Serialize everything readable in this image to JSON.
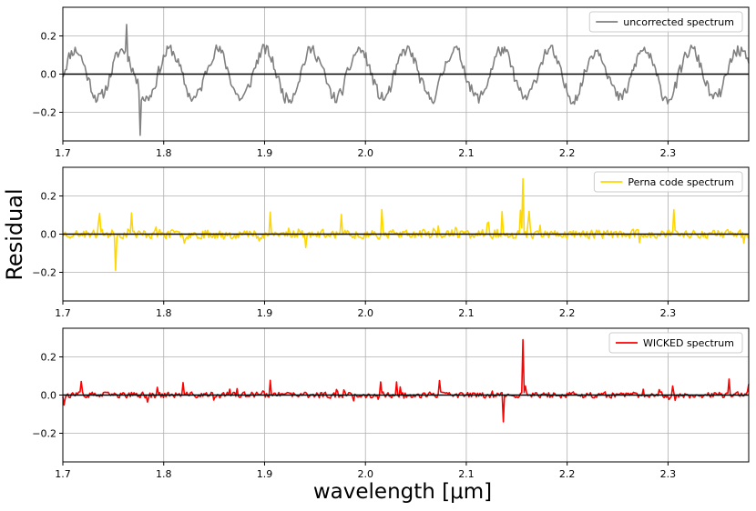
{
  "chart_data": {
    "type": "line",
    "ylabel": "Residual",
    "xlabel": "wavelength [μm]",
    "xlim": [
      1.7,
      2.38
    ],
    "ylim": [
      -0.35,
      0.35
    ],
    "x_ticks": [
      "1.7",
      "1.8",
      "1.9",
      "2.0",
      "2.1",
      "2.2",
      "2.3"
    ],
    "y_ticks": [
      "−0.2",
      "0.0",
      "0.2"
    ],
    "grid": true,
    "zero_line": 0.0,
    "panels": [
      {
        "legend": "uncorrected spectrum",
        "legend_position": "top-right",
        "color": "#808080",
        "amplitude": 0.18,
        "min_value": -0.32,
        "min_at": 1.777,
        "max_value": 0.26,
        "max_at": 1.763,
        "seed": 11
      },
      {
        "legend": "Perna code spectrum",
        "legend_position": "top-right",
        "color": "#ffd700",
        "amplitude": 0.09,
        "min_value": -0.19,
        "min_at": 1.752,
        "max_value": 0.29,
        "max_at": 2.156,
        "seed": 23
      },
      {
        "legend": "WICKED spectrum",
        "legend_position": "top-right",
        "color": "#ff0000",
        "amplitude": 0.06,
        "min_value": -0.14,
        "min_at": 2.137,
        "max_value": 0.29,
        "max_at": 2.156,
        "seed": 37
      }
    ]
  }
}
